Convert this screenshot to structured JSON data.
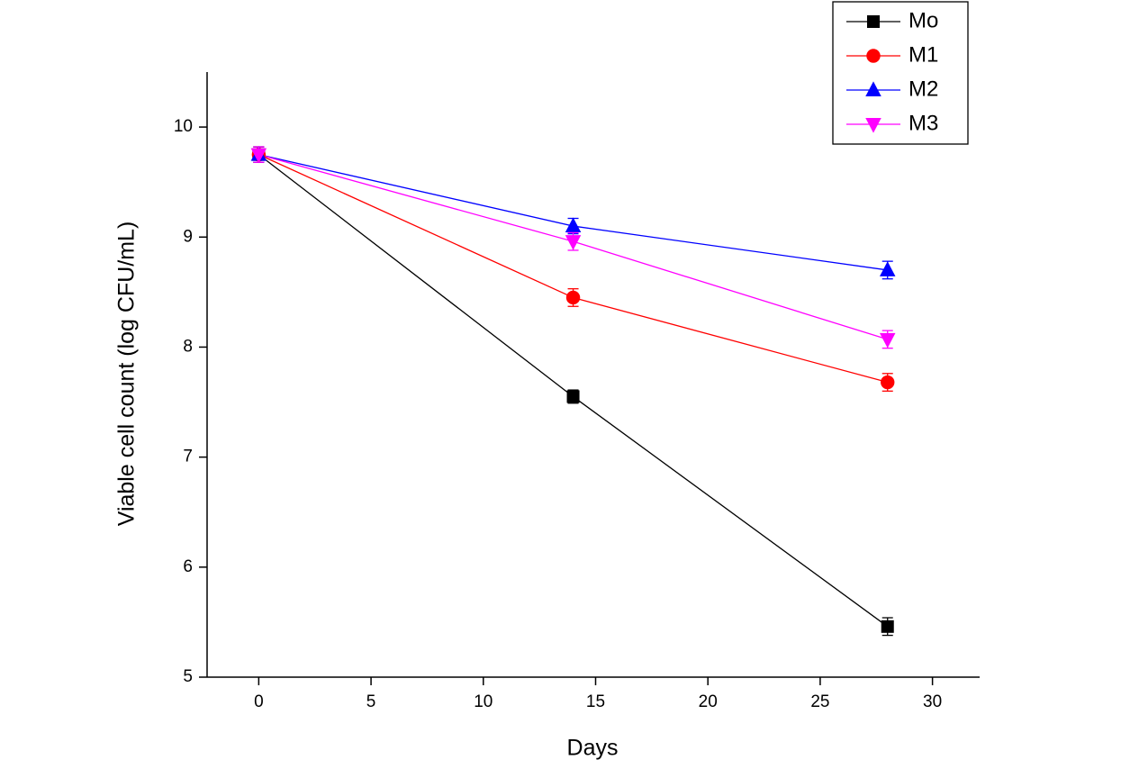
{
  "chart_data": {
    "type": "line",
    "xlabel": "Days",
    "ylabel": "Viable cell count (log CFU/mL)",
    "x": [
      0,
      14,
      28
    ],
    "series": [
      {
        "name": "Mo",
        "color": "#000000",
        "marker": "square",
        "values": [
          9.75,
          7.55,
          5.46
        ],
        "errors": [
          0.07,
          0.06,
          0.08
        ]
      },
      {
        "name": "M1",
        "color": "#ff0000",
        "marker": "circle",
        "values": [
          9.75,
          8.45,
          7.68
        ],
        "errors": [
          0.07,
          0.08,
          0.08
        ]
      },
      {
        "name": "M2",
        "color": "#0000ff",
        "marker": "triangle-up",
        "values": [
          9.75,
          9.1,
          8.7
        ],
        "errors": [
          0.07,
          0.07,
          0.08
        ]
      },
      {
        "name": "M3",
        "color": "#ff00ff",
        "marker": "triangle-down",
        "values": [
          9.75,
          8.96,
          8.07
        ],
        "errors": [
          0.07,
          0.08,
          0.08
        ]
      }
    ],
    "xlim": [
      -2.3,
      32.1
    ],
    "xticks": [
      0,
      5,
      10,
      15,
      20,
      25,
      30
    ],
    "ylim": [
      5,
      10.5
    ],
    "yticks": [
      5,
      6,
      7,
      8,
      9,
      10
    ],
    "legend": "upper right"
  }
}
